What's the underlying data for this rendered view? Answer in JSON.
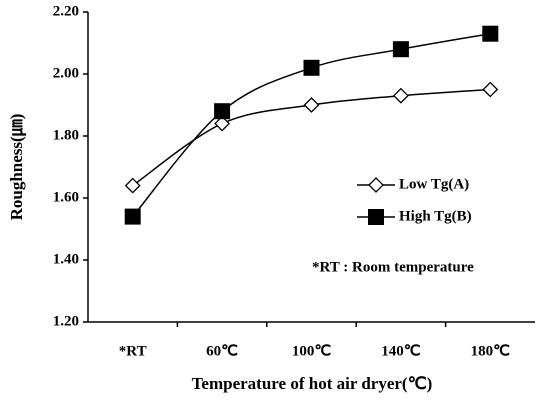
{
  "chart_data": {
    "type": "line",
    "x_label": "Temperature of hot air dryer(℃)",
    "y_label": "Roughness(㎛)",
    "annotation": "*RT : Room temperature",
    "categories": [
      "*RT",
      "60℃",
      "100℃",
      "140℃",
      "180℃"
    ],
    "series": [
      {
        "name": "Low Tg(A)",
        "color": "#000000",
        "marker": "diamond-open",
        "values": [
          1.64,
          1.84,
          1.9,
          1.93,
          1.95
        ]
      },
      {
        "name": "High Tg(B)",
        "color": "#000000",
        "marker": "square-filled",
        "values": [
          1.54,
          1.88,
          2.02,
          2.08,
          2.13
        ]
      }
    ],
    "ylim": [
      1.2,
      2.2
    ],
    "yticks": [
      {
        "value": 1.2,
        "label": "1.20"
      },
      {
        "value": 1.4,
        "label": "1.40"
      },
      {
        "value": 1.6,
        "label": "1.60"
      },
      {
        "value": 1.8,
        "label": "1.80"
      },
      {
        "value": 2.0,
        "label": "2.00"
      },
      {
        "value": 2.2,
        "label": "2.20"
      }
    ],
    "grid": false
  }
}
